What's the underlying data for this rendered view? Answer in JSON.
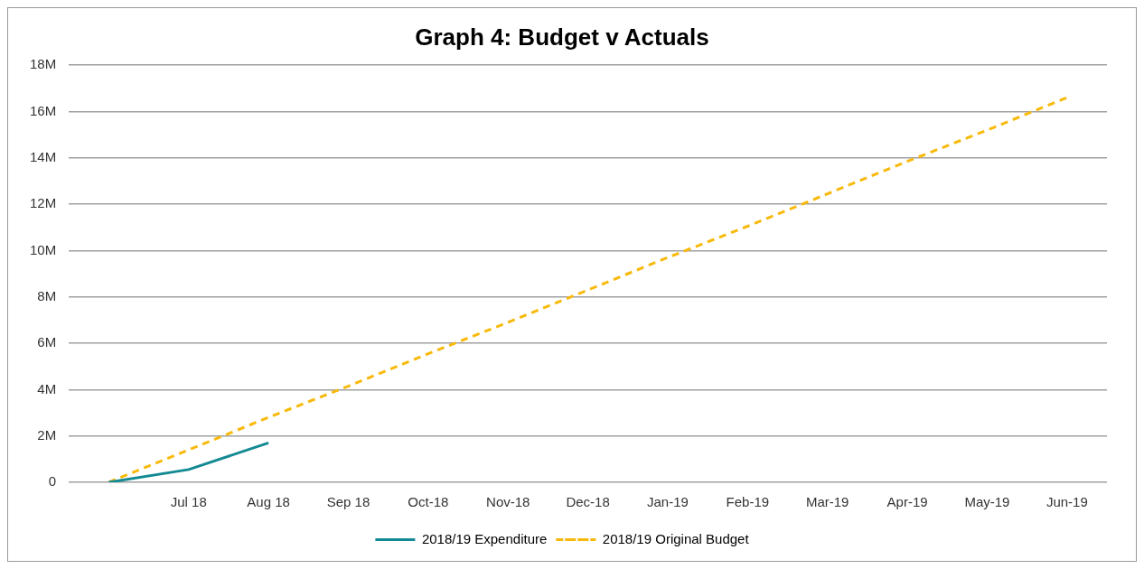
{
  "chart_data": {
    "type": "line",
    "title": "Graph 4: Budget v Actuals",
    "categories": [
      null,
      "Jul 18",
      "Aug 18",
      "Sep 18",
      "Oct-18",
      "Nov-18",
      "Dec-18",
      "Jan-19",
      "Feb-19",
      "Mar-19",
      "Apr-19",
      "May-19",
      "Jun-19"
    ],
    "series": [
      {
        "name": "2018/19 Expenditure",
        "color": "#138a93",
        "line_style": "solid",
        "values": [
          0,
          0.55,
          1.7,
          null,
          null,
          null,
          null,
          null,
          null,
          null,
          null,
          null,
          null
        ]
      },
      {
        "name": "2018/19 Original Budget",
        "color": "#f9b90a",
        "line_style": "dashed",
        "values": [
          0,
          1.4,
          2.8,
          4.15,
          5.55,
          6.9,
          8.3,
          9.7,
          11.05,
          12.45,
          13.85,
          15.2,
          16.6
        ]
      }
    ],
    "ylim": [
      0,
      18
    ],
    "yticks": [
      0,
      {
        "value": 2,
        "label": "2M"
      },
      {
        "value": 4,
        "label": "4M"
      },
      {
        "value": 6,
        "label": "6M"
      },
      {
        "value": 8,
        "label": "8M"
      },
      {
        "value": 10,
        "label": "10M"
      },
      {
        "value": 12,
        "label": "12M"
      },
      {
        "value": 14,
        "label": "14M"
      },
      {
        "value": 16,
        "label": "16M"
      },
      {
        "value": 18,
        "label": "18M"
      }
    ],
    "grid": "y",
    "legend": "bottom",
    "marker": "none"
  }
}
